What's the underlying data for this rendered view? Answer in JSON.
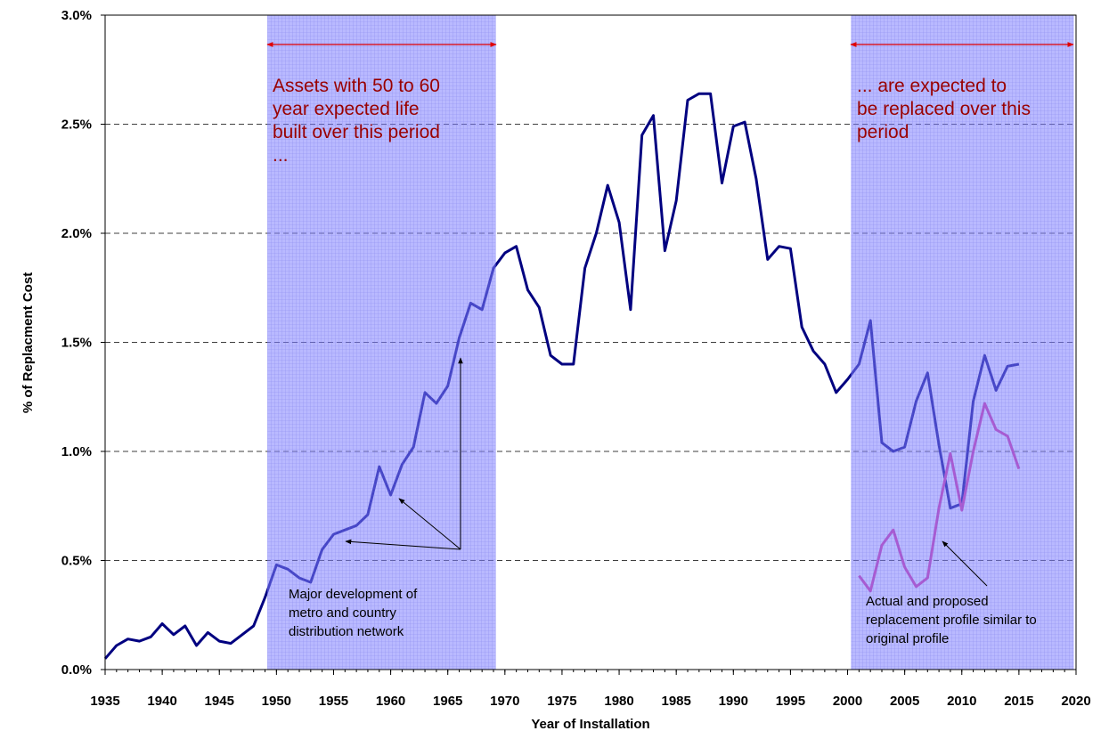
{
  "chart_data": {
    "type": "line",
    "x_label": "Year of Installation",
    "y_label": "% of Replacment Cost",
    "x": [
      1935,
      1936,
      1937,
      1938,
      1939,
      1940,
      1941,
      1942,
      1943,
      1944,
      1945,
      1946,
      1947,
      1948,
      1949,
      1950,
      1951,
      1952,
      1953,
      1954,
      1955,
      1956,
      1957,
      1958,
      1959,
      1960,
      1961,
      1962,
      1963,
      1964,
      1965,
      1966,
      1967,
      1968,
      1969,
      1970,
      1971,
      1972,
      1973,
      1974,
      1975,
      1976,
      1977,
      1978,
      1979,
      1980,
      1981,
      1982,
      1983,
      1984,
      1985,
      1986,
      1987,
      1988,
      1989,
      1990,
      1991,
      1992,
      1993,
      1994,
      1995,
      1996,
      1997,
      1998,
      1999,
      2000,
      2001,
      2002,
      2003,
      2004,
      2005,
      2006,
      2007,
      2008,
      2009,
      2010,
      2011,
      2012,
      2013,
      2014,
      2015
    ],
    "series": [
      {
        "color": "#000080",
        "values": [
          0.05,
          0.11,
          0.14,
          0.13,
          0.15,
          0.21,
          0.16,
          0.2,
          0.11,
          0.17,
          0.13,
          0.12,
          0.16,
          0.2,
          0.33,
          0.48,
          0.46,
          0.42,
          0.4,
          0.55,
          0.62,
          0.64,
          0.66,
          0.71,
          0.93,
          0.8,
          0.94,
          1.02,
          1.27,
          1.22,
          1.3,
          1.52,
          1.68,
          1.65,
          1.84,
          1.91,
          1.94,
          1.74,
          1.66,
          1.44,
          1.4,
          1.4,
          1.84,
          2.0,
          2.22,
          2.05,
          1.65,
          2.45,
          2.54,
          1.92,
          2.15,
          2.61,
          2.64,
          2.64,
          2.23,
          2.49,
          2.51,
          2.25,
          1.88,
          1.94,
          1.93,
          1.57,
          1.46,
          1.4,
          1.27,
          1.33,
          1.4,
          1.6,
          1.04,
          1.0,
          1.02,
          1.23,
          1.36,
          1.03,
          0.74,
          0.76,
          1.23,
          1.44,
          1.28,
          1.39,
          1.4
        ]
      },
      {
        "color": "#e0309a",
        "values": [
          null,
          null,
          null,
          null,
          null,
          null,
          null,
          null,
          null,
          null,
          null,
          null,
          null,
          null,
          null,
          null,
          null,
          null,
          null,
          null,
          null,
          null,
          null,
          null,
          null,
          null,
          null,
          null,
          null,
          null,
          null,
          null,
          null,
          null,
          null,
          null,
          null,
          null,
          null,
          null,
          null,
          null,
          null,
          null,
          null,
          null,
          null,
          null,
          null,
          null,
          null,
          null,
          null,
          null,
          null,
          null,
          null,
          null,
          null,
          null,
          null,
          null,
          null,
          null,
          null,
          null,
          0.43,
          0.36,
          0.57,
          0.64,
          0.47,
          0.38,
          0.42,
          0.74,
          0.99,
          0.73,
          1.0,
          1.22,
          1.1,
          1.07,
          0.92
        ]
      }
    ],
    "xlim": [
      1935,
      2020
    ],
    "xticks": [
      1935,
      1940,
      1945,
      1950,
      1955,
      1960,
      1965,
      1970,
      1975,
      1980,
      1985,
      1990,
      1995,
      2000,
      2005,
      2010,
      2015,
      2020
    ],
    "ylim": [
      0,
      3
    ],
    "yticks": [
      {
        "value": 0,
        "label": "0.0%"
      },
      {
        "value": 0.5,
        "label": "0.5%"
      },
      {
        "value": 1,
        "label": "1.0%"
      },
      {
        "value": 1.5,
        "label": "1.5%"
      },
      {
        "value": 2,
        "label": "2.0%"
      },
      {
        "value": 2.5,
        "label": "2.5%"
      },
      {
        "value": 3,
        "label": "3.0%"
      }
    ],
    "grid": true,
    "shaded_regions": [
      [
        1949.2,
        1969.2
      ],
      [
        2000.3,
        2019.8
      ]
    ],
    "shade_color": "#8080ff",
    "annotations": [
      {
        "lines": [
          "Assets with 50 to 60",
          "year expected life",
          "built over this period",
          "..."
        ]
      },
      {
        "lines": [
          "... are expected to",
          "be replaced over this",
          "period"
        ]
      },
      {
        "lines": [
          "Major development of",
          "metro and country",
          "distribution network"
        ]
      },
      {
        "lines": [
          "Actual and proposed",
          "replacement profile similar to",
          "original profile"
        ]
      }
    ]
  }
}
